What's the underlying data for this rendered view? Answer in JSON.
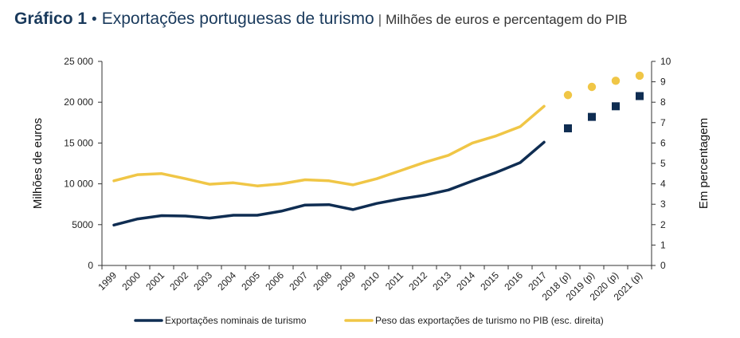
{
  "header": {
    "label": "Gráfico 1",
    "bullet": "•",
    "title": "Exportações portuguesas de turismo",
    "separator": "|",
    "unit": "Milhões de euros e percentagem do PIB"
  },
  "colors": {
    "navy": "#0f2d52",
    "gold": "#f0c646",
    "axis": "#333333"
  },
  "chart_data": {
    "type": "line",
    "categories": [
      "1999",
      "2000",
      "2001",
      "2002",
      "2003",
      "2004",
      "2005",
      "2006",
      "2007",
      "2008",
      "2009",
      "2010",
      "2011",
      "2012",
      "2013",
      "2014",
      "2015",
      "2016",
      "2017",
      "2018 (p)",
      "2019 (p)",
      "2020 (p)",
      "2021 (p)"
    ],
    "series": [
      {
        "name": "Exportações nominais de turismo",
        "axis": "left",
        "color": "#0f2d52",
        "values": [
          4950,
          5700,
          6100,
          6050,
          5800,
          6150,
          6150,
          6650,
          7400,
          7450,
          6850,
          7600,
          8150,
          8600,
          9250,
          10350,
          11400,
          12600,
          15100,
          null,
          null,
          null,
          null
        ],
        "projections": [
          null,
          null,
          null,
          null,
          null,
          null,
          null,
          null,
          null,
          null,
          null,
          null,
          null,
          null,
          null,
          null,
          null,
          null,
          null,
          16800,
          18200,
          19500,
          20750
        ],
        "projection_marker": "square"
      },
      {
        "name": "Peso das exportações de turismo no PIB (esc. direita)",
        "axis": "right",
        "color": "#f0c646",
        "values": [
          4.15,
          4.45,
          4.5,
          4.25,
          3.98,
          4.05,
          3.9,
          4.0,
          4.2,
          4.15,
          3.95,
          4.25,
          4.65,
          5.05,
          5.4,
          6.0,
          6.35,
          6.8,
          7.8,
          null,
          null,
          null,
          null
        ],
        "projections": [
          null,
          null,
          null,
          null,
          null,
          null,
          null,
          null,
          null,
          null,
          null,
          null,
          null,
          null,
          null,
          null,
          null,
          null,
          null,
          8.35,
          8.75,
          9.05,
          9.3
        ],
        "projection_marker": "circle"
      }
    ],
    "y_left": {
      "label": "Milhões de euros",
      "ylim": [
        0,
        25000
      ],
      "ticks": [
        0,
        5000,
        10000,
        15000,
        20000,
        25000
      ],
      "tick_labels": [
        "0",
        "5000",
        "10 000",
        "15 000",
        "20 000",
        "25 000"
      ]
    },
    "y_right": {
      "label": "Em percentagem",
      "ylim": [
        0,
        10
      ],
      "ticks": [
        0,
        1,
        2,
        3,
        4,
        5,
        6,
        7,
        8,
        9,
        10
      ],
      "tick_labels": [
        "0",
        "1",
        "2",
        "3",
        "4",
        "5",
        "6",
        "7",
        "8",
        "9",
        "10"
      ]
    },
    "grid": false,
    "legend_position": "bottom"
  }
}
